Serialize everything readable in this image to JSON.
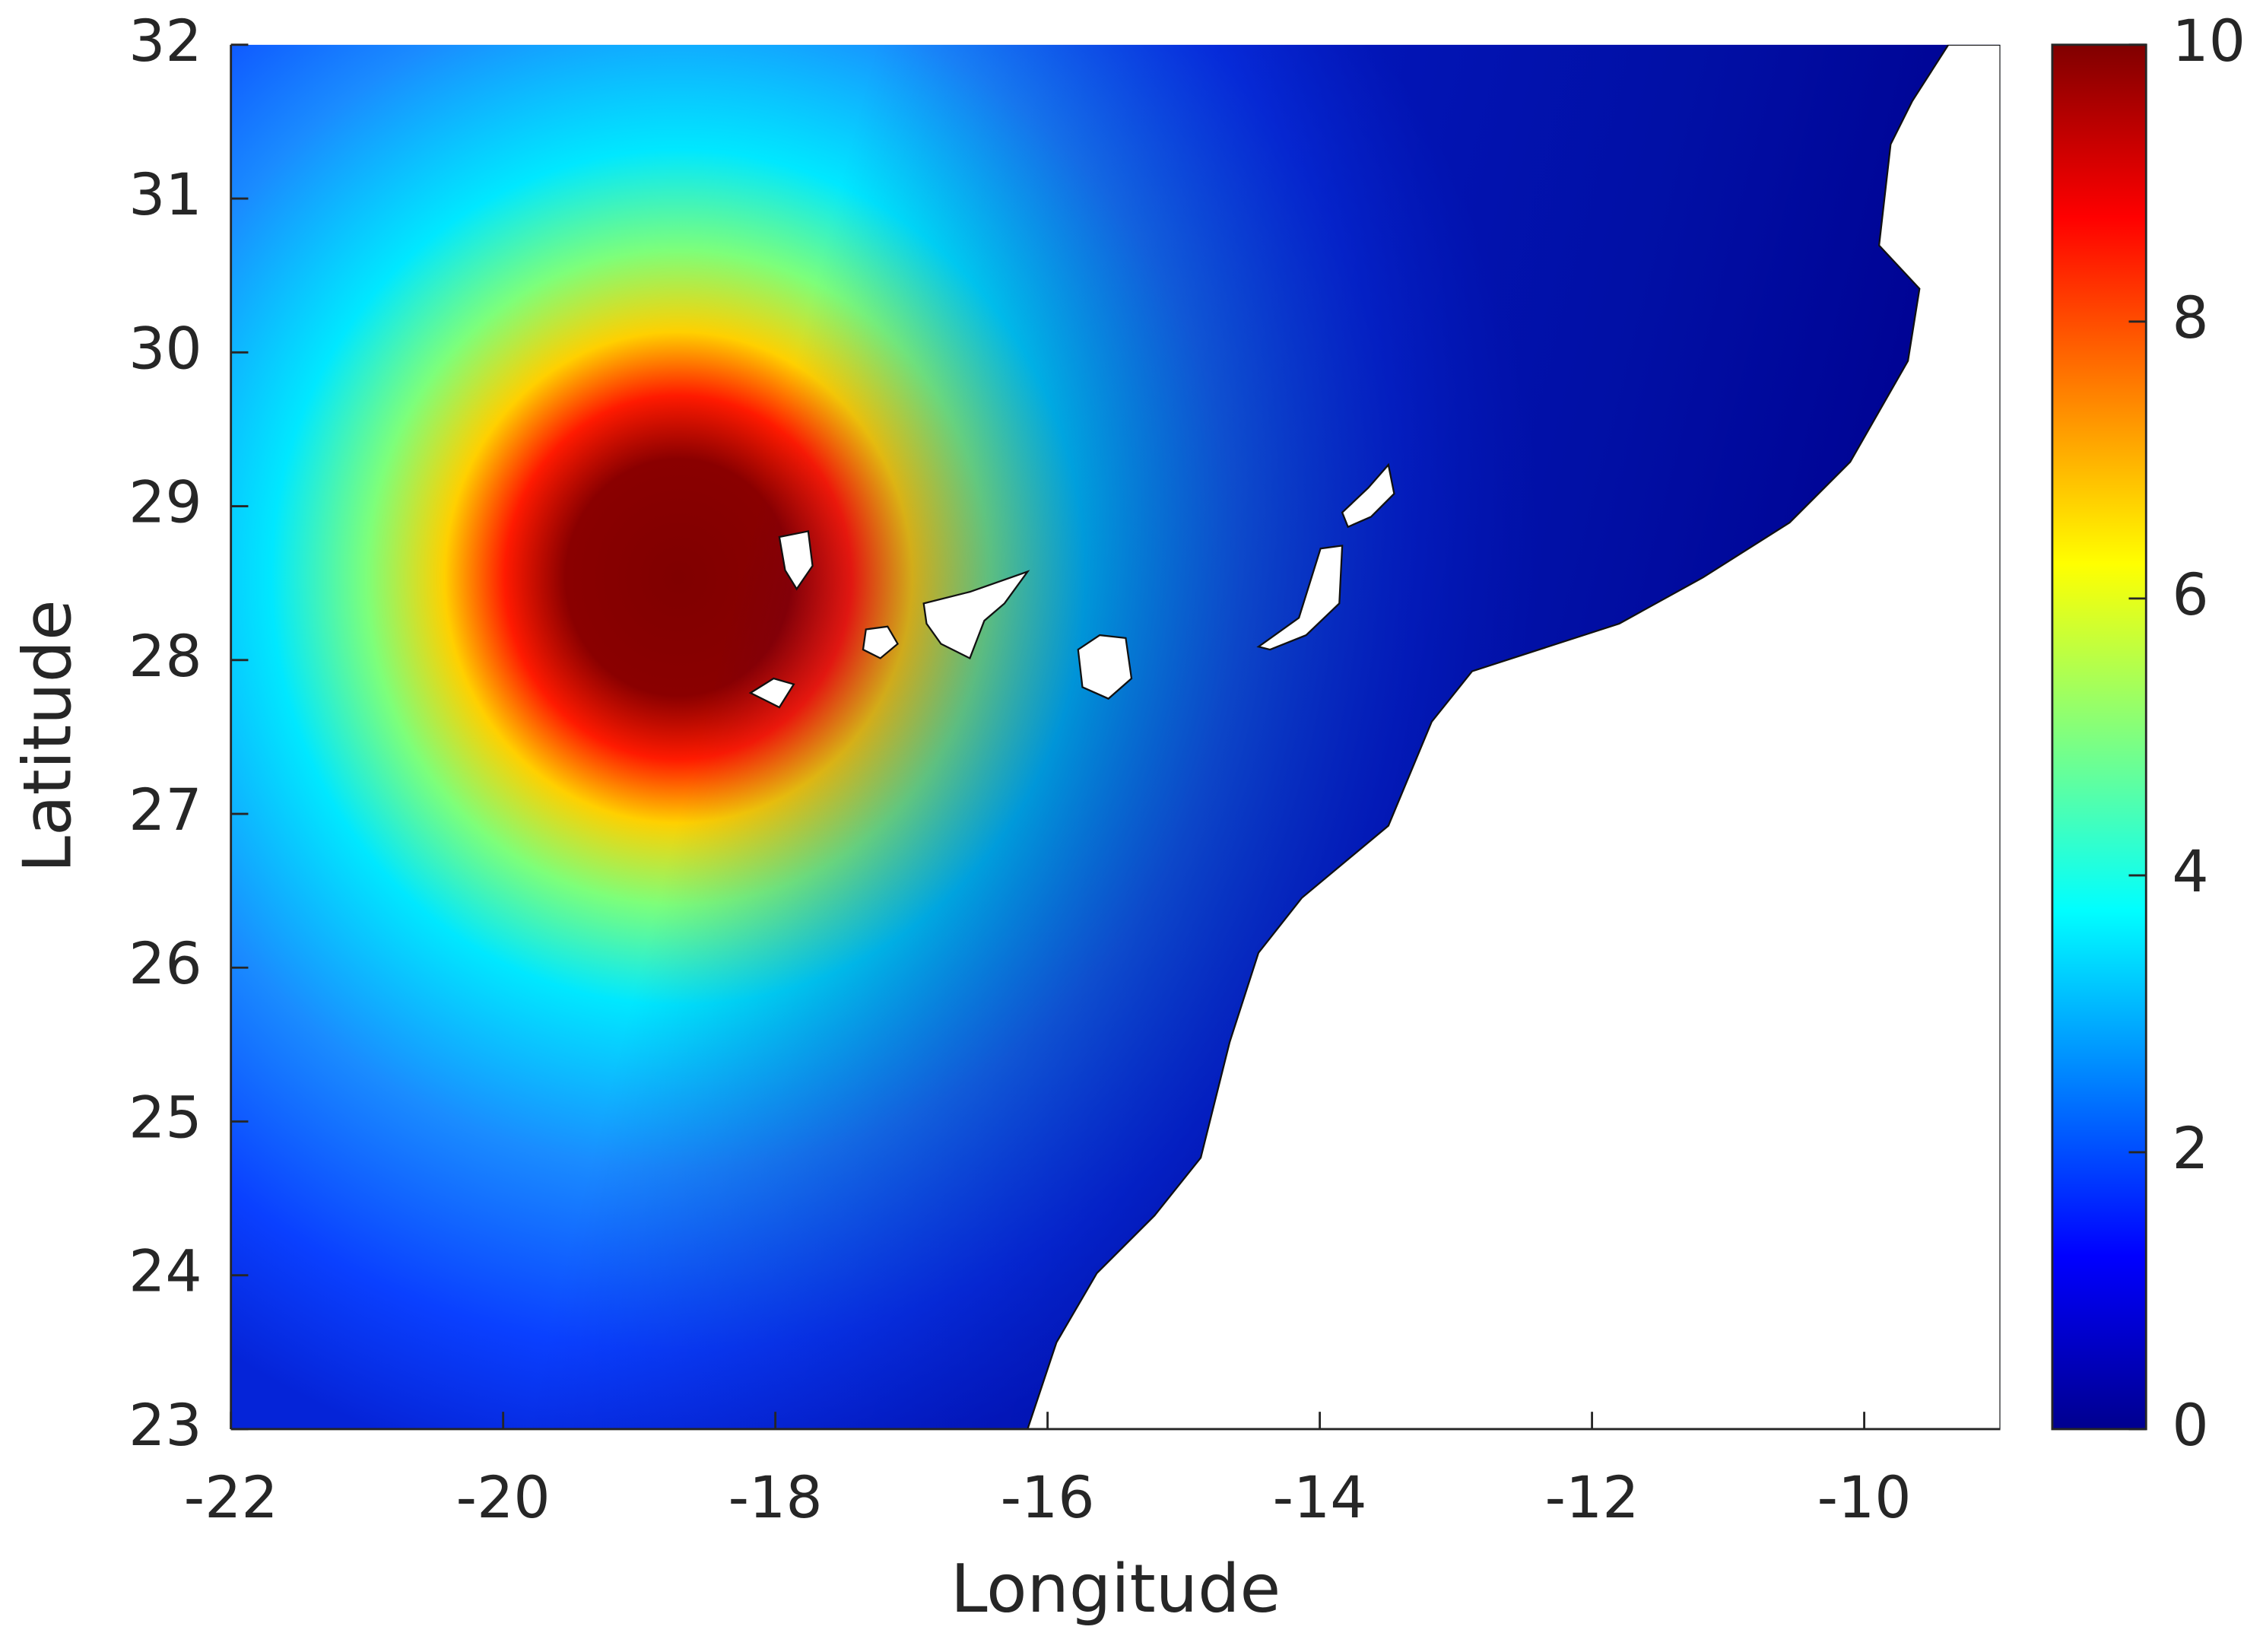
{
  "chart_data": {
    "type": "heatmap",
    "x_label": "Longitude",
    "y_label": "Latitude",
    "xlim": [
      -22,
      -9
    ],
    "xticks": [
      -22,
      -20,
      -18,
      -16,
      -14,
      -12,
      -10
    ],
    "ylim": [
      23,
      32
    ],
    "yticks": [
      23,
      24,
      25,
      26,
      27,
      28,
      29,
      30,
      31,
      32
    ],
    "colormap": "jet",
    "clim": [
      0,
      10
    ],
    "cticks": [
      0,
      2,
      4,
      6,
      8,
      10
    ]
  }
}
